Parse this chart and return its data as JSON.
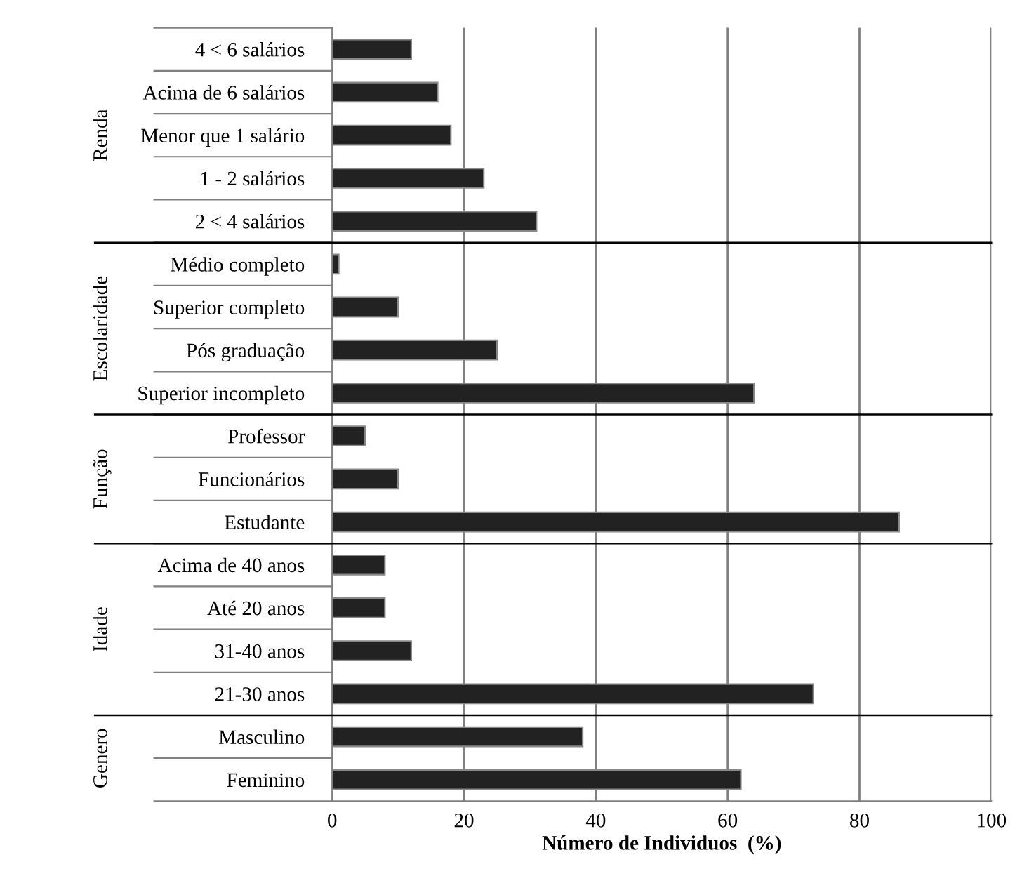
{
  "chart_data": [
    {
      "type": "bar",
      "orientation": "horizontal",
      "ylabel": "Renda",
      "categories": [
        "4 < 6 salários",
        "Acima de 6 salários",
        "Menor que 1 salário",
        "1 - 2 salários",
        "2 < 4 salários"
      ],
      "values": [
        12,
        16,
        18,
        23,
        31
      ],
      "color": "#222222",
      "xlim": [
        0,
        100
      ],
      "xticks": [
        0,
        20,
        40,
        60,
        80,
        100
      ],
      "grid": "x",
      "tick_labels": "y"
    },
    {
      "type": "bar",
      "orientation": "horizontal",
      "ylabel": "Escolaridade",
      "categories": [
        "Médio completo",
        "Superior completo",
        "Pós graduação",
        "Superior incompleto"
      ],
      "values": [
        1,
        10,
        25,
        64
      ],
      "color": "#222222",
      "xlim": [
        0,
        100
      ],
      "xticks": [
        0,
        20,
        40,
        60,
        80,
        100
      ],
      "grid": "x",
      "tick_labels": "y"
    },
    {
      "type": "bar",
      "orientation": "horizontal",
      "ylabel": "Função",
      "categories": [
        "Professor",
        "Funcionários",
        "Estudante"
      ],
      "values": [
        5,
        10,
        86
      ],
      "color": "#222222",
      "xlim": [
        0,
        100
      ],
      "xticks": [
        0,
        20,
        40,
        60,
        80,
        100
      ],
      "grid": "x",
      "tick_labels": "y"
    },
    {
      "type": "bar",
      "orientation": "horizontal",
      "ylabel": "Idade",
      "categories": [
        "Acima de 40 anos",
        "Até 20 anos",
        "31-40 anos",
        "21-30 anos"
      ],
      "values": [
        8,
        8,
        12,
        73
      ],
      "color": "#222222",
      "xlim": [
        0,
        100
      ],
      "xticks": [
        0,
        20,
        40,
        60,
        80,
        100
      ],
      "grid": "x",
      "tick_labels": "y"
    },
    {
      "type": "bar",
      "orientation": "horizontal",
      "ylabel": "Genero",
      "xlabel": "Número de Individuos  (%)",
      "categories": [
        "Masculino",
        "Feminino"
      ],
      "values": [
        38,
        62
      ],
      "color": "#222222",
      "xlim": [
        0,
        100
      ],
      "xticks": [
        0,
        20,
        40,
        60,
        80,
        100
      ],
      "grid": "x"
    }
  ]
}
